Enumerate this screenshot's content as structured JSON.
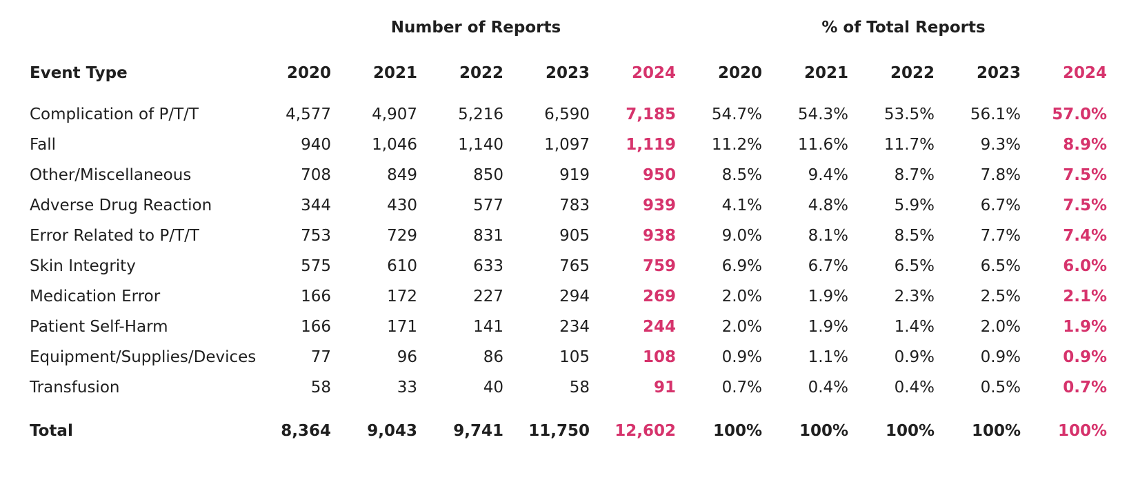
{
  "colors": {
    "text": "#1f1f1f",
    "accent": "#d6336c",
    "background": "#ffffff"
  },
  "chart_data": {
    "type": "table",
    "group_headers": [
      "Number of Reports",
      "% of Total Reports"
    ],
    "first_column_header": "Event Type",
    "years": [
      "2020",
      "2021",
      "2022",
      "2023",
      "2024"
    ],
    "highlight_year": "2024",
    "rows": [
      {
        "label": "Complication of P/T/T",
        "counts": [
          "4,577",
          "4,907",
          "5,216",
          "6,590",
          "7,185"
        ],
        "percents": [
          "54.7%",
          "54.3%",
          "53.5%",
          "56.1%",
          "57.0%"
        ]
      },
      {
        "label": "Fall",
        "counts": [
          "940",
          "1,046",
          "1,140",
          "1,097",
          "1,119"
        ],
        "percents": [
          "11.2%",
          "11.6%",
          "11.7%",
          "9.3%",
          "8.9%"
        ]
      },
      {
        "label": "Other/Miscellaneous",
        "counts": [
          "708",
          "849",
          "850",
          "919",
          "950"
        ],
        "percents": [
          "8.5%",
          "9.4%",
          "8.7%",
          "7.8%",
          "7.5%"
        ]
      },
      {
        "label": "Adverse Drug Reaction",
        "counts": [
          "344",
          "430",
          "577",
          "783",
          "939"
        ],
        "percents": [
          "4.1%",
          "4.8%",
          "5.9%",
          "6.7%",
          "7.5%"
        ]
      },
      {
        "label": "Error Related to P/T/T",
        "counts": [
          "753",
          "729",
          "831",
          "905",
          "938"
        ],
        "percents": [
          "9.0%",
          "8.1%",
          "8.5%",
          "7.7%",
          "7.4%"
        ]
      },
      {
        "label": "Skin Integrity",
        "counts": [
          "575",
          "610",
          "633",
          "765",
          "759"
        ],
        "percents": [
          "6.9%",
          "6.7%",
          "6.5%",
          "6.5%",
          "6.0%"
        ]
      },
      {
        "label": "Medication Error",
        "counts": [
          "166",
          "172",
          "227",
          "294",
          "269"
        ],
        "percents": [
          "2.0%",
          "1.9%",
          "2.3%",
          "2.5%",
          "2.1%"
        ]
      },
      {
        "label": "Patient Self-Harm",
        "counts": [
          "166",
          "171",
          "141",
          "234",
          "244"
        ],
        "percents": [
          "2.0%",
          "1.9%",
          "1.4%",
          "2.0%",
          "1.9%"
        ]
      },
      {
        "label": "Equipment/Supplies/Devices",
        "counts": [
          "77",
          "96",
          "86",
          "105",
          "108"
        ],
        "percents": [
          "0.9%",
          "1.1%",
          "0.9%",
          "0.9%",
          "0.9%"
        ]
      },
      {
        "label": "Transfusion",
        "counts": [
          "58",
          "33",
          "40",
          "58",
          "91"
        ],
        "percents": [
          "0.7%",
          "0.4%",
          "0.4%",
          "0.5%",
          "0.7%"
        ]
      }
    ],
    "total": {
      "label": "Total",
      "counts": [
        "8,364",
        "9,043",
        "9,741",
        "11,750",
        "12,602"
      ],
      "percents": [
        "100%",
        "100%",
        "100%",
        "100%",
        "100%"
      ]
    }
  }
}
